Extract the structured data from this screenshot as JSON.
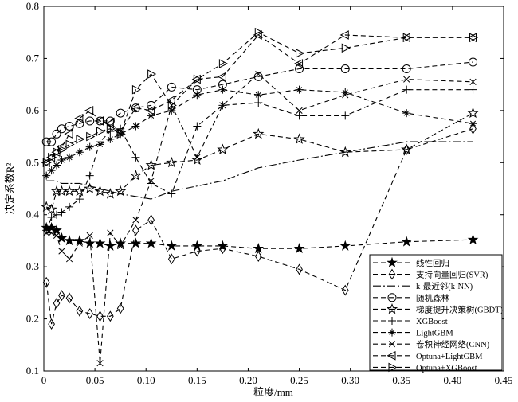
{
  "chart_data": {
    "type": "line",
    "title": "",
    "xlabel": "粒度/mm",
    "ylabel": "决定系数R²",
    "xlim": [
      0,
      0.45
    ],
    "ylim": [
      0.1,
      0.8
    ],
    "xticks": [
      "0",
      "0.05",
      "0.10",
      "0.15",
      "0.20",
      "0.25",
      "0.30",
      "0.35",
      "0.40",
      "0.45"
    ],
    "yticks": [
      "0.1",
      "0.2",
      "0.3",
      "0.4",
      "0.5",
      "0.6",
      "0.7",
      "0.8"
    ],
    "legend_position": "bottom-right",
    "grid": false,
    "series": [
      {
        "name": "线性回归",
        "marker": "star-filled",
        "x": [
          0.0025,
          0.0075,
          0.0125,
          0.0175,
          0.025,
          0.035,
          0.045,
          0.055,
          0.065,
          0.075,
          0.09,
          0.105,
          0.125,
          0.15,
          0.175,
          0.21,
          0.25,
          0.295,
          0.355,
          0.42
        ],
        "values": [
          0.375,
          0.375,
          0.37,
          0.355,
          0.35,
          0.35,
          0.345,
          0.345,
          0.34,
          0.345,
          0.345,
          0.345,
          0.34,
          0.34,
          0.34,
          0.335,
          0.335,
          0.34,
          0.348,
          0.352
        ]
      },
      {
        "name": "支持向量回归(SVR)",
        "marker": "diamond",
        "x": [
          0.0025,
          0.0075,
          0.0125,
          0.0175,
          0.025,
          0.035,
          0.045,
          0.055,
          0.065,
          0.075,
          0.09,
          0.105,
          0.125,
          0.15,
          0.175,
          0.21,
          0.25,
          0.295,
          0.355,
          0.42
        ],
        "values": [
          0.27,
          0.19,
          0.23,
          0.245,
          0.24,
          0.215,
          0.21,
          0.205,
          0.205,
          0.22,
          0.37,
          0.39,
          0.315,
          0.33,
          0.335,
          0.32,
          0.295,
          0.255,
          0.525,
          0.565
        ]
      },
      {
        "name": "k-最近邻(k-NN)",
        "marker": "none",
        "style": "dashdot",
        "x": [
          0.0025,
          0.0075,
          0.0125,
          0.0175,
          0.025,
          0.035,
          0.045,
          0.055,
          0.065,
          0.075,
          0.09,
          0.105,
          0.125,
          0.15,
          0.175,
          0.21,
          0.25,
          0.295,
          0.355,
          0.42
        ],
        "values": [
          0.465,
          0.465,
          0.465,
          0.46,
          0.46,
          0.46,
          0.455,
          0.45,
          0.445,
          0.44,
          0.435,
          0.43,
          0.445,
          0.455,
          0.465,
          0.49,
          0.505,
          0.52,
          0.54,
          0.54
        ]
      },
      {
        "name": "随机森林",
        "marker": "circle",
        "x": [
          0.0025,
          0.0075,
          0.0125,
          0.0175,
          0.025,
          0.035,
          0.045,
          0.055,
          0.065,
          0.075,
          0.09,
          0.105,
          0.125,
          0.15,
          0.175,
          0.21,
          0.25,
          0.295,
          0.355,
          0.42
        ],
        "values": [
          0.54,
          0.54,
          0.555,
          0.565,
          0.57,
          0.575,
          0.58,
          0.58,
          0.58,
          0.595,
          0.605,
          0.61,
          0.645,
          0.64,
          0.65,
          0.665,
          0.68,
          0.68,
          0.68,
          0.693
        ]
      },
      {
        "name": "梯度提升决策树(GBDT)",
        "marker": "star-open",
        "x": [
          0.0025,
          0.0075,
          0.0125,
          0.0175,
          0.025,
          0.035,
          0.045,
          0.055,
          0.065,
          0.075,
          0.09,
          0.105,
          0.125,
          0.15,
          0.175,
          0.21,
          0.25,
          0.295,
          0.355,
          0.42
        ],
        "values": [
          0.415,
          0.41,
          0.445,
          0.445,
          0.445,
          0.445,
          0.45,
          0.445,
          0.44,
          0.445,
          0.475,
          0.495,
          0.5,
          0.505,
          0.525,
          0.555,
          0.545,
          0.52,
          0.525,
          0.595
        ]
      },
      {
        "name": "XGBoost",
        "marker": "plus",
        "x": [
          0.0025,
          0.0075,
          0.0125,
          0.0175,
          0.025,
          0.035,
          0.045,
          0.055,
          0.065,
          0.075,
          0.09,
          0.105,
          0.125,
          0.15,
          0.175,
          0.21,
          0.25,
          0.295,
          0.355,
          0.42
        ],
        "values": [
          0.37,
          0.395,
          0.4,
          0.405,
          0.415,
          0.43,
          0.475,
          0.54,
          0.56,
          0.565,
          0.51,
          0.46,
          0.44,
          0.57,
          0.61,
          0.615,
          0.59,
          0.59,
          0.64,
          0.64
        ]
      },
      {
        "name": "LightGBM",
        "marker": "asterisk",
        "x": [
          0.0025,
          0.0075,
          0.0125,
          0.0175,
          0.025,
          0.035,
          0.045,
          0.055,
          0.065,
          0.075,
          0.09,
          0.105,
          0.125,
          0.15,
          0.175,
          0.21,
          0.25,
          0.295,
          0.355,
          0.42
        ],
        "values": [
          0.475,
          0.485,
          0.495,
          0.505,
          0.51,
          0.52,
          0.53,
          0.535,
          0.545,
          0.555,
          0.57,
          0.59,
          0.6,
          0.63,
          0.64,
          0.63,
          0.64,
          0.635,
          0.595,
          0.575
        ]
      },
      {
        "name": "卷积神经网络(CNN)",
        "marker": "x",
        "x": [
          0.0025,
          0.0075,
          0.0125,
          0.0175,
          0.025,
          0.035,
          0.045,
          0.055,
          0.065,
          0.075,
          0.09,
          0.105,
          0.125,
          0.15,
          0.175,
          0.21,
          0.25,
          0.295,
          0.355,
          0.42
        ],
        "values": [
          0.365,
          0.365,
          0.36,
          0.33,
          0.315,
          0.345,
          0.36,
          0.115,
          0.365,
          0.34,
          0.39,
          0.465,
          0.61,
          0.51,
          0.61,
          0.67,
          0.6,
          0.63,
          0.66,
          0.655
        ]
      },
      {
        "name": "Optuna+LightGBM",
        "marker": "triangle-left",
        "x": [
          0.0025,
          0.0075,
          0.0125,
          0.0175,
          0.025,
          0.035,
          0.045,
          0.055,
          0.065,
          0.075,
          0.09,
          0.105,
          0.125,
          0.15,
          0.175,
          0.21,
          0.25,
          0.295,
          0.355,
          0.42
        ],
        "values": [
          0.5,
          0.51,
          0.52,
          0.53,
          0.555,
          0.585,
          0.6,
          0.58,
          0.575,
          0.56,
          0.605,
          0.6,
          0.62,
          0.66,
          0.665,
          0.745,
          0.69,
          0.745,
          0.74,
          0.74
        ]
      },
      {
        "name": "Optuna+XGBoost",
        "marker": "triangle-right",
        "x": [
          0.0025,
          0.0075,
          0.0125,
          0.0175,
          0.025,
          0.035,
          0.045,
          0.055,
          0.065,
          0.075,
          0.09,
          0.105,
          0.125,
          0.15,
          0.175,
          0.21,
          0.25,
          0.295,
          0.355,
          0.42
        ],
        "values": [
          0.5,
          0.51,
          0.52,
          0.525,
          0.535,
          0.545,
          0.55,
          0.56,
          0.565,
          0.555,
          0.64,
          0.67,
          0.61,
          0.66,
          0.69,
          0.75,
          0.71,
          0.72,
          0.74,
          0.74
        ]
      }
    ]
  }
}
